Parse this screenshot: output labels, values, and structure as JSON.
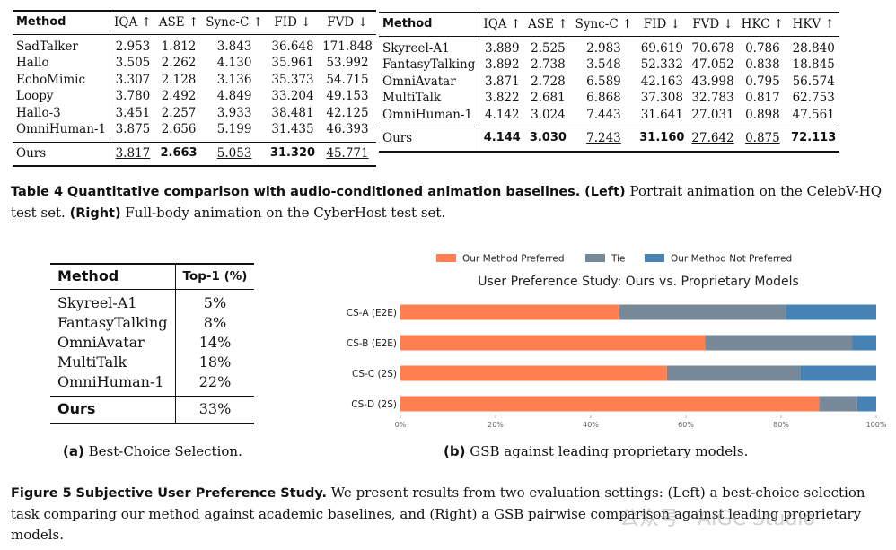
{
  "table_left": {
    "columns": [
      "Method",
      "IQA ↑",
      "ASE ↑",
      "Sync-C ↑",
      "FID ↓",
      "FVD ↓"
    ],
    "rows": [
      {
        "method": "SadTalker",
        "v": [
          "2.953",
          "1.812",
          "3.843",
          "36.648",
          "171.848"
        ]
      },
      {
        "method": "Hallo",
        "v": [
          "3.505",
          "2.262",
          "4.130",
          "35.961",
          "53.992"
        ]
      },
      {
        "method": "EchoMimic",
        "v": [
          "3.307",
          "2.128",
          "3.136",
          "35.373",
          "54.715"
        ]
      },
      {
        "method": "Loopy",
        "v": [
          "3.780",
          "2.492",
          "4.849",
          "33.204",
          "49.153"
        ]
      },
      {
        "method": "Hallo-3",
        "v": [
          "3.451",
          "2.257",
          "3.933",
          "38.481",
          "42.125"
        ]
      },
      {
        "method": "OmniHuman-1",
        "v": [
          "3.875",
          "2.656",
          "5.199",
          "31.435",
          "46.393"
        ]
      }
    ],
    "ours": {
      "method": "Ours",
      "v": [
        "3.817",
        "2.663",
        "5.053",
        "31.320",
        "45.771"
      ]
    }
  },
  "table_right": {
    "columns": [
      "Method",
      "IQA ↑",
      "ASE ↑",
      "Sync-C ↑",
      "FID ↓",
      "FVD ↓",
      "HKC ↑",
      "HKV ↑"
    ],
    "rows": [
      {
        "method": "Skyreel-A1",
        "v": [
          "3.889",
          "2.525",
          "2.983",
          "69.619",
          "70.678",
          "0.786",
          "28.840"
        ]
      },
      {
        "method": "FantasyTalking",
        "v": [
          "3.892",
          "2.738",
          "3.548",
          "52.332",
          "47.052",
          "0.838",
          "18.845"
        ]
      },
      {
        "method": "OmniAvatar",
        "v": [
          "3.871",
          "2.728",
          "6.589",
          "42.163",
          "43.998",
          "0.795",
          "56.574"
        ]
      },
      {
        "method": "MultiTalk",
        "v": [
          "3.822",
          "2.681",
          "6.868",
          "37.308",
          "32.783",
          "0.817",
          "62.753"
        ]
      },
      {
        "method": "OmniHuman-1",
        "v": [
          "4.142",
          "3.024",
          "7.443",
          "31.641",
          "27.031",
          "0.898",
          "47.561"
        ]
      }
    ],
    "ours": {
      "method": "Ours",
      "v": [
        "4.144",
        "3.030",
        "7.243",
        "31.160",
        "27.642",
        "0.875",
        "72.113"
      ]
    }
  },
  "table4_caption": {
    "label": "Table 4",
    "title": "Quantitative comparison with audio-conditioned animation baselines.",
    "left_tag": "(Left)",
    "left_text": "Portrait animation on the CelebV-HQ test set.",
    "right_tag": "(Right)",
    "right_text": "Full-body animation on the CyberHost test set."
  },
  "table_pref": {
    "columns": [
      "Method",
      "Top-1 (%)"
    ],
    "rows": [
      {
        "method": "Skyreel-A1",
        "v": "5%"
      },
      {
        "method": "FantasyTalking",
        "v": "8%"
      },
      {
        "method": "OmniAvatar",
        "v": "14%"
      },
      {
        "method": "MultiTalk",
        "v": "18%"
      },
      {
        "method": "OmniHuman-1",
        "v": "22%"
      }
    ],
    "ours": {
      "method": "Ours",
      "v": "33%"
    }
  },
  "subcaption_a": {
    "label": "(a)",
    "text": "Best-Choice Selection."
  },
  "subcaption_b": {
    "label": "(b)",
    "text": "GSB against leading proprietary models."
  },
  "figure5_caption": {
    "label": "Figure 5",
    "title": "Subjective User Preference Study.",
    "text": "We present results from two evaluation settings: (Left) a best-choice selection task comparing our method against academic baselines, and (Right) a GSB pairwise comparison against leading proprietary models."
  },
  "watermark": "公众号 · AIGC Studio",
  "chart_data": {
    "type": "bar",
    "orientation": "horizontal-stacked",
    "title": "User Preference Study: Ours vs. Proprietary Models",
    "categories": [
      "CS-A (E2E)",
      "CS-B (E2E)",
      "CS-C (2S)",
      "CS-D (2S)"
    ],
    "series": [
      {
        "name": "Our Method Preferred",
        "color": "#ff7f50",
        "values": [
          46,
          64,
          56,
          88
        ]
      },
      {
        "name": "Tie",
        "color": "#778899",
        "values": [
          35,
          31,
          28,
          8
        ]
      },
      {
        "name": "Our Method Not Preferred",
        "color": "#4682b4",
        "values": [
          19,
          5,
          16,
          4
        ]
      }
    ],
    "xlim": [
      0,
      100
    ],
    "xticks": [
      "0%",
      "20%",
      "40%",
      "60%",
      "80%",
      "100%"
    ],
    "legend": "top-center",
    "grid": false
  }
}
